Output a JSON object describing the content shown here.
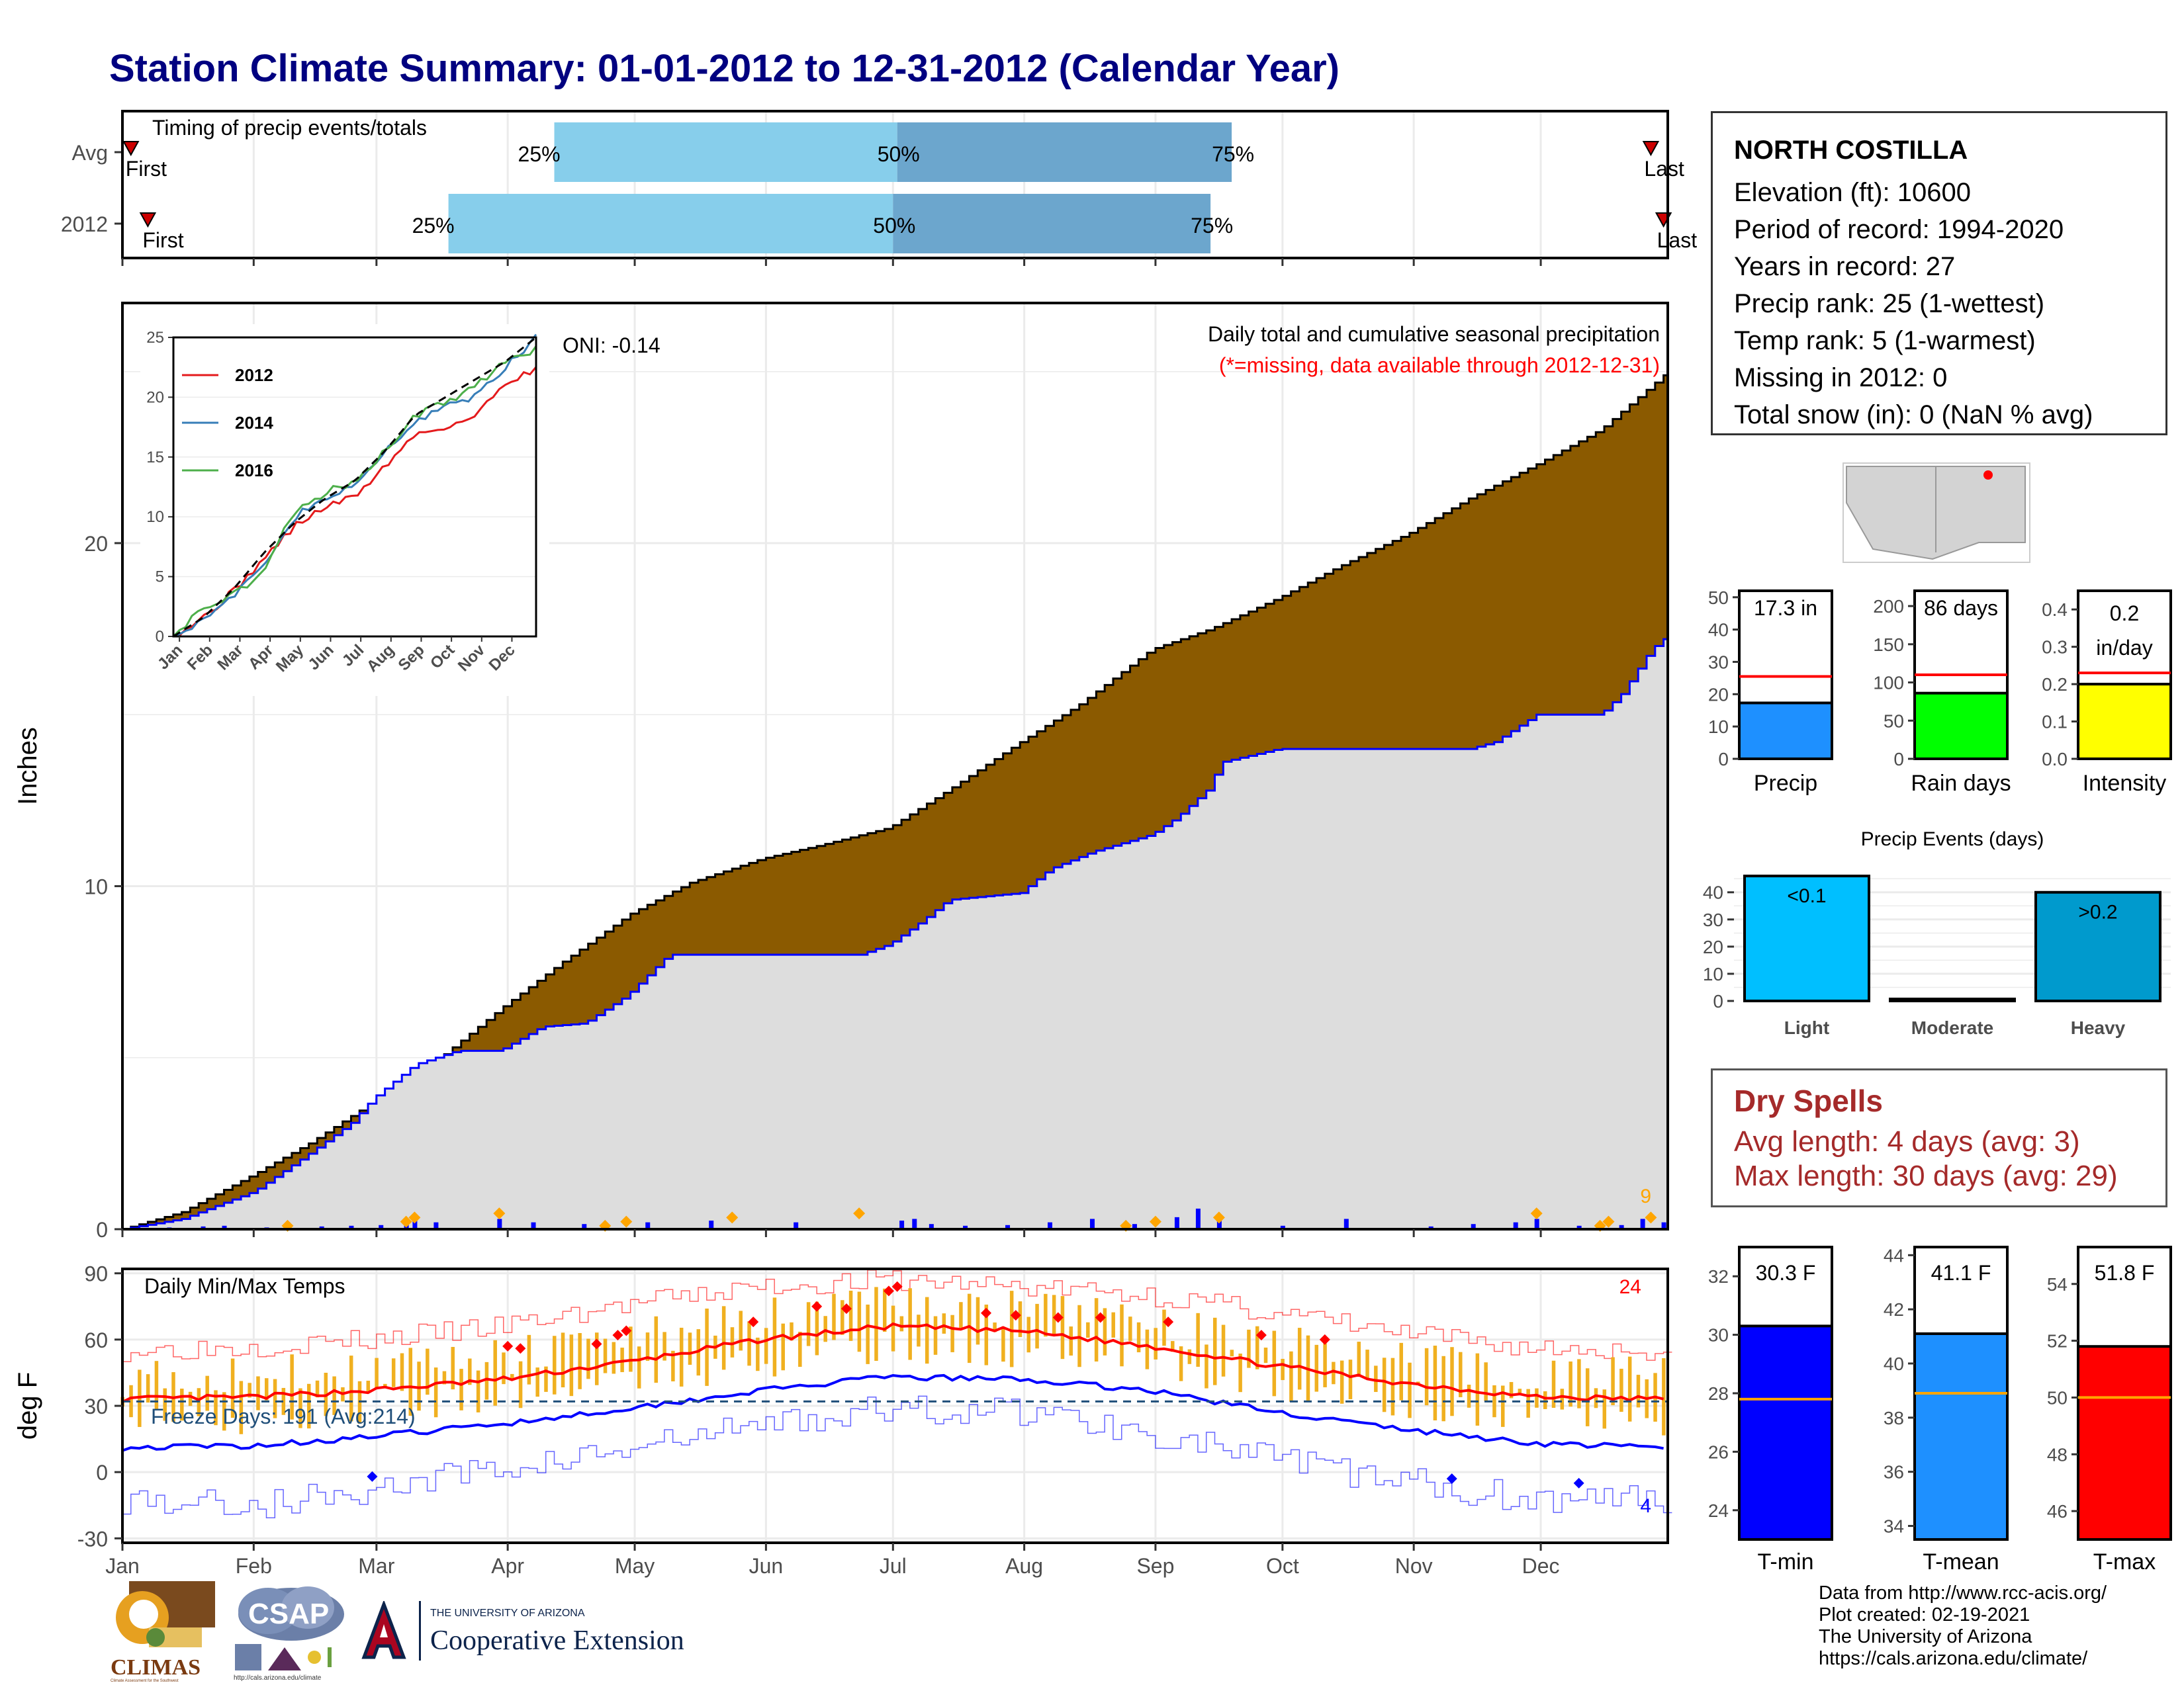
{
  "title": "Station Climate Summary: 01-01-2012 to 12-31-2012 (Calendar Year)",
  "station": {
    "name": "NORTH COSTILLA",
    "lines": [
      "Elevation (ft): 10600",
      "Period of record: 1994-2020",
      "Years in record: 27",
      "Precip rank: 25 (1-wettest)",
      "Temp rank: 5 (1-warmest)",
      "Missing in 2012: 0",
      "Total snow (in): 0 (NaN % avg)"
    ]
  },
  "dry_spells": {
    "title": "Dry Spells",
    "avg_length": "Avg length: 4 days (avg: 3)",
    "max_length": "Max length: 30 days (avg: 29)"
  },
  "credits": [
    "Data from http://www.rcc-acis.org/",
    "Plot created: 02-19-2021",
    "The University of Arizona",
    "https://cals.arizona.edu/climate/"
  ],
  "logos": {
    "climas": "CLIMAS",
    "climas_sub": "Climate Assessment for the Southwest",
    "csap": "CSAP",
    "csap_url": "http://cals.arizona.edu/climate",
    "ua_small": "THE UNIVERSITY OF ARIZONA",
    "ua_big": "Cooperative Extension"
  },
  "months": [
    "Jan",
    "Feb",
    "Mar",
    "Apr",
    "May",
    "Jun",
    "Jul",
    "Aug",
    "Sep",
    "Oct",
    "Nov",
    "Dec"
  ],
  "colors": {
    "cum_avg_fill": "#dddddd",
    "cum_2012_fill": "#8b5a00",
    "daily_bar": "#0000ff",
    "timing_light": "#87ceeb",
    "timing_dark": "#6ca6cd",
    "tmax_line": "#ff0000",
    "tmin_line": "#0000ff",
    "daily_range": "#f0b020",
    "precip_bar": "#1e90ff",
    "raindays_bar": "#00ff00",
    "intensity_bar": "#ffff00",
    "light_bar": "#00bfff",
    "heavy_bar": "#009acd"
  },
  "chart_data": [
    {
      "id": "timing",
      "type": "bar",
      "title": "Timing of precip events/totals",
      "rows": [
        {
          "label": "Avg",
          "p25_doy": 103,
          "p50_doy": 184,
          "p75_doy": 263,
          "first_doy": 3,
          "last_doy": 362,
          "first_label": "First",
          "last_label": "Last"
        },
        {
          "label": "2012",
          "p25_doy": 78,
          "p50_doy": 183,
          "p75_doy": 258,
          "first_doy": 7,
          "last_doy": 365,
          "first_label": "First",
          "last_label": "Last"
        }
      ],
      "pct_labels": [
        "25%",
        "50%",
        "75%"
      ]
    },
    {
      "id": "cumulative_precip",
      "type": "area",
      "title": "Daily total and cumulative seasonal precipitation",
      "subtitle": "(*=missing, data available through 2012-12-31)",
      "ylabel": "Inches",
      "ylim": [
        0,
        27
      ],
      "yticks": [
        0,
        10,
        20
      ],
      "oni": "ONI: -0.14",
      "corner_count": "9",
      "series": [
        {
          "name": "avg cumulative",
          "x_doy": [
            1,
            15,
            32,
            45,
            60,
            75,
            91,
            105,
            121,
            135,
            152,
            166,
            182,
            196,
            213,
            227,
            244,
            258,
            274,
            288,
            305,
            319,
            335,
            350,
            366
          ],
          "values": [
            0,
            0.5,
            1.6,
            2.5,
            3.7,
            4.9,
            6.5,
            7.8,
            9.2,
            10.1,
            10.8,
            11.2,
            11.7,
            12.8,
            14.2,
            15.3,
            16.9,
            17.5,
            18.4,
            19.3,
            20.3,
            21.3,
            22.3,
            23.3,
            25.0
          ]
        },
        {
          "name": "2012 cumulative",
          "x_doy": [
            1,
            15,
            32,
            45,
            55,
            60,
            70,
            80,
            90,
            100,
            110,
            120,
            130,
            138,
            145,
            160,
            175,
            182,
            190,
            196,
            213,
            220,
            230,
            244,
            250,
            258,
            260,
            274,
            290,
            305,
            319,
            325,
            335,
            343,
            350,
            355,
            362,
            366
          ],
          "values": [
            0,
            0.3,
            1.1,
            2.2,
            3.1,
            3.8,
            4.8,
            5.2,
            5.2,
            5.9,
            6.0,
            6.8,
            8.0,
            8.0,
            8.0,
            8.0,
            8.0,
            8.3,
            9.0,
            9.6,
            9.8,
            10.5,
            11.0,
            11.5,
            12.0,
            12.9,
            13.6,
            14.0,
            14.0,
            14.0,
            14.0,
            14.2,
            15.0,
            15.0,
            15.0,
            15.6,
            16.9,
            17.3
          ]
        }
      ],
      "daily_bars": {
        "doy": [
          12,
          20,
          25,
          35,
          40,
          48,
          55,
          62,
          68,
          70,
          75,
          90,
          98,
          110,
          125,
          140,
          160,
          185,
          188,
          192,
          200,
          210,
          220,
          230,
          240,
          250,
          255,
          260,
          275,
          290,
          310,
          320,
          330,
          335,
          345,
          355,
          360,
          365
        ],
        "values": [
          0.05,
          0.08,
          0.1,
          0.05,
          0.2,
          0.08,
          0.1,
          0.12,
          0.25,
          0.3,
          0.2,
          0.3,
          0.2,
          0.15,
          0.2,
          0.25,
          0.2,
          0.25,
          0.3,
          0.15,
          0.1,
          0.12,
          0.2,
          0.3,
          0.15,
          0.35,
          0.6,
          0.3,
          0.1,
          0.3,
          0.08,
          0.15,
          0.2,
          0.3,
          0.1,
          0.12,
          0.3,
          0.2
        ]
      },
      "inset": {
        "type": "line",
        "yticks": [
          0,
          5,
          10,
          15,
          20,
          25
        ],
        "ylim": [
          0,
          25
        ],
        "series": [
          {
            "name": "2012",
            "values": [
              0,
              1.6,
              3.8,
              6.5,
              9.2,
              10.8,
              11.7,
              14.2,
              16.9,
              17.5,
              18.4,
              21.3,
              22.3
            ]
          },
          {
            "name": "2014",
            "values": [
              0,
              1.5,
              3.3,
              6.0,
              10.0,
              11.5,
              12.5,
              15.5,
              17.8,
              19.5,
              20.0,
              22.5,
              25.0
            ]
          },
          {
            "name": "2016",
            "values": [
              0,
              2.5,
              3.5,
              5.5,
              10.5,
              12.0,
              13.0,
              15.5,
              18.5,
              19.5,
              21.0,
              23.0,
              24.0
            ]
          },
          {
            "name": "avg",
            "values": [
              0,
              1.6,
              4.0,
              7.0,
              9.5,
              11.5,
              13.0,
              15.5,
              18.5,
              20.0,
              21.5,
              23.0,
              25.0
            ]
          }
        ],
        "x_labels": [
          "Jan",
          "Feb",
          "Mar",
          "Apr",
          "May",
          "Jun",
          "Jul",
          "Aug",
          "Sep",
          "Oct",
          "Nov",
          "Dec"
        ]
      }
    },
    {
      "id": "temps",
      "type": "line",
      "title": "Daily Min/Max Temps",
      "ylabel": "deg F",
      "ylim": [
        -32,
        92
      ],
      "yticks": [
        -30,
        0,
        30,
        60,
        90
      ],
      "freeze_line": 32,
      "freeze_label": "Freeze Days: 191 (Avg:214)",
      "record_high_count": "24",
      "record_low_count": "4",
      "series": [
        {
          "name": "avg max",
          "x_doy": [
            1,
            32,
            60,
            91,
            121,
            152,
            182,
            213,
            244,
            274,
            305,
            335,
            366
          ],
          "values": [
            33,
            34,
            37,
            42,
            50,
            60,
            66,
            64,
            57,
            48,
            40,
            34,
            33
          ]
        },
        {
          "name": "avg min",
          "x_doy": [
            1,
            32,
            60,
            91,
            121,
            152,
            182,
            213,
            244,
            274,
            305,
            335,
            366
          ],
          "values": [
            11,
            12,
            16,
            22,
            29,
            37,
            43,
            42,
            37,
            27,
            19,
            13,
            11
          ]
        },
        {
          "name": "record max",
          "x_doy": [
            1,
            32,
            60,
            91,
            121,
            152,
            182,
            213,
            244,
            274,
            305,
            335,
            366
          ],
          "values": [
            55,
            57,
            60,
            66,
            76,
            84,
            87,
            84,
            80,
            72,
            62,
            56,
            55
          ]
        },
        {
          "name": "record min",
          "x_doy": [
            1,
            32,
            60,
            91,
            121,
            152,
            182,
            213,
            244,
            274,
            305,
            335,
            366
          ],
          "values": [
            -12,
            -15,
            -8,
            2,
            10,
            22,
            28,
            28,
            18,
            5,
            -5,
            -12,
            -12
          ]
        }
      ]
    },
    {
      "id": "precip_summary",
      "type": "bar",
      "panels": [
        {
          "label": "Precip",
          "value": 17.3,
          "avg": 25.5,
          "value_label": "17.3 in",
          "ylim": [
            0,
            52
          ],
          "yticks": [
            0,
            10,
            20,
            30,
            40,
            50
          ]
        },
        {
          "label": "Rain days",
          "value": 86,
          "avg": 110,
          "value_label": "86 days",
          "ylim": [
            0,
            220
          ],
          "yticks": [
            0,
            50,
            100,
            150,
            200
          ]
        },
        {
          "label": "Intensity",
          "value": 0.2,
          "avg": 0.23,
          "value_label": "0.2 in/day",
          "ylim": [
            0,
            0.45
          ],
          "yticks": [
            0.0,
            0.1,
            0.2,
            0.3,
            0.4
          ]
        }
      ]
    },
    {
      "id": "precip_events",
      "type": "bar",
      "title": "Precip Events (days)",
      "categories": [
        "Light",
        "Moderate",
        "Heavy"
      ],
      "values": [
        46,
        0,
        40
      ],
      "bar_labels": [
        "<0.1",
        "",
        ">0.2"
      ],
      "ylim": [
        0,
        47
      ],
      "yticks": [
        0,
        10,
        20,
        30,
        40
      ]
    },
    {
      "id": "temp_summary",
      "type": "bar",
      "panels": [
        {
          "label": "T-min",
          "value": 30.3,
          "avg": 27.8,
          "value_label": "30.3 F",
          "ylim": [
            23,
            33
          ],
          "yticks": [
            24,
            26,
            28,
            30,
            32
          ]
        },
        {
          "label": "T-mean",
          "value": 41.1,
          "avg": 38.9,
          "value_label": "41.1 F",
          "ylim": [
            33.5,
            44.3
          ],
          "yticks": [
            34,
            36,
            38,
            40,
            42,
            44
          ]
        },
        {
          "label": "T-max",
          "value": 51.8,
          "avg": 50.0,
          "value_label": "51.8 F",
          "ylim": [
            45,
            55.3
          ],
          "yticks": [
            46,
            48,
            50,
            52,
            54
          ]
        }
      ]
    }
  ]
}
